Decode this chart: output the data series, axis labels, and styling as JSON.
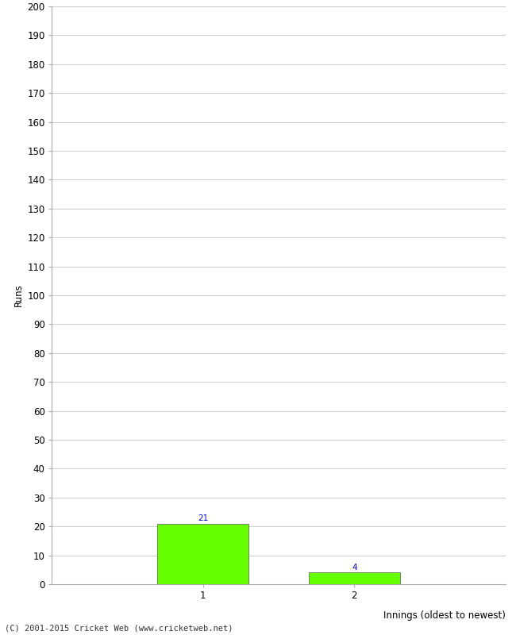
{
  "categories": [
    "1",
    "2"
  ],
  "values": [
    21,
    4
  ],
  "bar_color": "#66ff00",
  "bar_edge_color": "#555555",
  "ylabel": "Runs",
  "xlabel": "Innings (oldest to newest)",
  "ylim": [
    0,
    200
  ],
  "yticks": [
    0,
    10,
    20,
    30,
    40,
    50,
    60,
    70,
    80,
    90,
    100,
    110,
    120,
    130,
    140,
    150,
    160,
    170,
    180,
    190,
    200
  ],
  "annotation_color": "#0000cc",
  "annotation_fontsize": 7.5,
  "tick_fontsize": 8.5,
  "label_fontsize": 8.5,
  "footer": "(C) 2001-2015 Cricket Web (www.cricketweb.net)",
  "footer_fontsize": 7.5,
  "background_color": "#ffffff",
  "grid_color": "#cccccc",
  "x_positions": [
    1,
    2
  ],
  "xlim": [
    0,
    3
  ]
}
